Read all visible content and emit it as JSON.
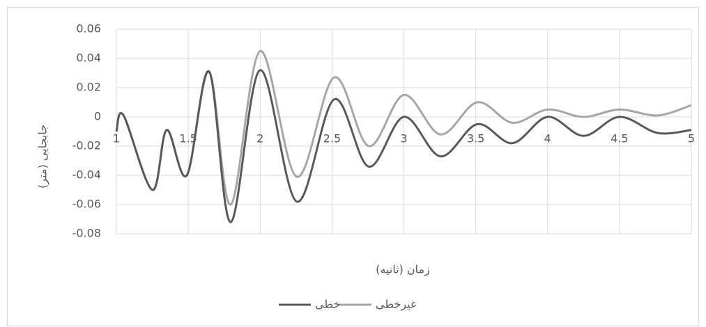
{
  "chart_data": {
    "type": "line",
    "x_label": "زمان (ثانیه)",
    "y_label": "جابجایی (متر)",
    "x": [
      1,
      1.05,
      1.25,
      1.35,
      1.49,
      1.645,
      1.795,
      2.0,
      2.255,
      2.515,
      2.755,
      3.0,
      3.255,
      3.51,
      3.755,
      4.0,
      4.25,
      4.5,
      4.765,
      5
    ],
    "series": [
      {
        "name": "خطی",
        "color": "#595959",
        "values": [
          -0.01,
          0.001,
          -0.05,
          -0.009,
          -0.04,
          0.031,
          -0.072,
          0.032,
          -0.058,
          0.012,
          -0.034,
          0,
          -0.027,
          -0.005,
          -0.018,
          0,
          -0.013,
          0,
          -0.011,
          -0.009
        ]
      },
      {
        "name": "غیرخطی",
        "color": "#a6a6a6",
        "values": [
          -0.01,
          0.001,
          -0.05,
          -0.009,
          -0.04,
          0.031,
          -0.06,
          0.045,
          -0.041,
          0.027,
          -0.02,
          0.015,
          -0.012,
          0.01,
          -0.004,
          0.005,
          0,
          0.005,
          0.001,
          0.008
        ]
      }
    ],
    "xlim": [
      1,
      5
    ],
    "xticks": [
      1,
      1.5,
      2,
      2.5,
      3,
      3.5,
      4,
      4.5,
      5
    ],
    "ylim": [
      -0.08,
      0.06
    ],
    "yticks": [
      -0.08,
      -0.06,
      -0.04,
      -0.02,
      0,
      0.02,
      0.04,
      0.06
    ],
    "grid": true,
    "legend": "bottom"
  }
}
